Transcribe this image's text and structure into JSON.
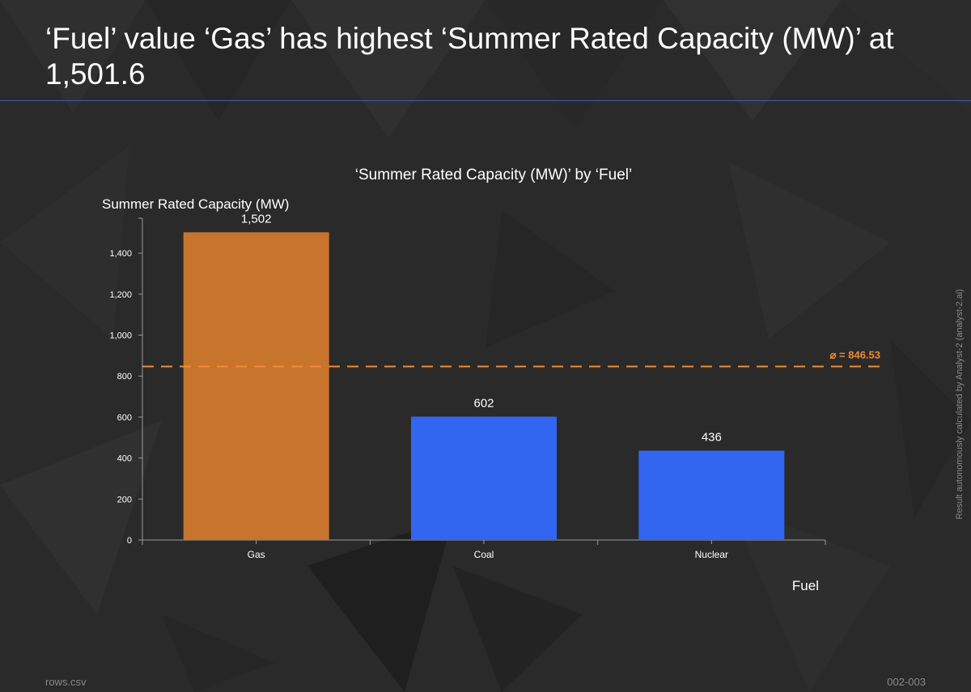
{
  "page": {
    "headline": "‘Fuel’ value ‘Gas’ has highest ‘Summer Rated Capacity (MW)’ at 1,501.6",
    "footer_left": "rows.csv",
    "footer_right": "002-003",
    "side_note": "Result autonomously calculated by Analyst-2 (analyst-2.ai)"
  },
  "colors": {
    "highlight_bar": "#c8742c",
    "normal_bar": "#3366f0",
    "average_line": "#f08c32",
    "axis": "#9a9a9a",
    "background": "#2a2a2a",
    "rule": "#3d5fa8"
  },
  "chart_data": {
    "type": "bar",
    "title": "‘Summer Rated Capacity (MW)’ by ‘Fuel’",
    "xlabel": "Fuel",
    "ylabel": "Summer Rated Capacity (MW)",
    "categories": [
      "Gas",
      "Coal",
      "Nuclear"
    ],
    "values": [
      1501.6,
      602,
      436
    ],
    "value_labels": [
      "1,502",
      "602",
      "436"
    ],
    "highlight": "Gas",
    "ylim": [
      0,
      1570
    ],
    "yticks": [
      0,
      200,
      400,
      600,
      800,
      1000,
      1200,
      1400
    ],
    "ytick_labels": [
      "0",
      "200",
      "400",
      "600",
      "800",
      "1,000",
      "1,200",
      "1,400"
    ],
    "average": 846.53,
    "average_label": "⌀ = 846.53"
  }
}
